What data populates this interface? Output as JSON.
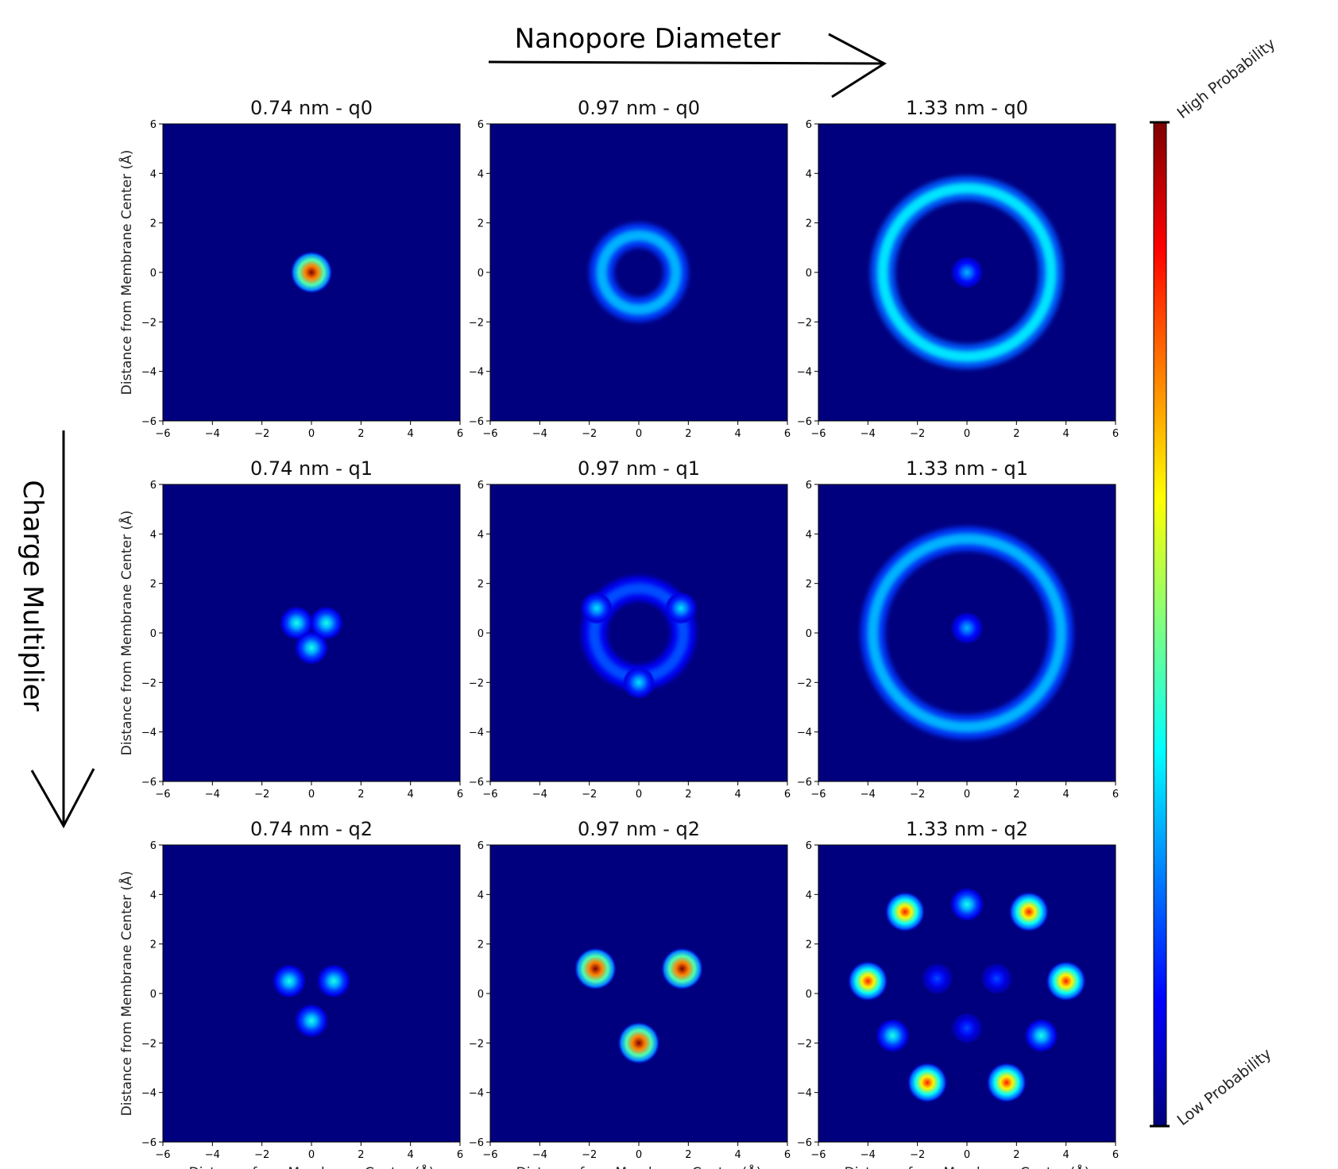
{
  "figure": {
    "top_label": "Nanopore Diameter",
    "left_label": "Charge Multiplier",
    "colorbar_high": "High Probability",
    "colorbar_low": "Low Probability",
    "colorbar_colors": [
      "#00007f",
      "#0000ff",
      "#007fff",
      "#00ffff",
      "#7fff7f",
      "#ffff00",
      "#ff7f00",
      "#ff0000",
      "#7f0000"
    ]
  },
  "chart_data": [
    {
      "type": "heatmap",
      "title": "0.74 nm - q0",
      "ylabel": "Distance from Membrane Center (Å)",
      "xlabel": "",
      "xlim": [
        -6,
        6
      ],
      "ylim": [
        -6,
        6
      ],
      "xticks": [
        -6,
        -4,
        -2,
        0,
        2,
        4,
        6
      ],
      "yticks": [
        -6,
        -4,
        -2,
        0,
        2,
        4,
        6
      ],
      "features": [
        {
          "x": 0,
          "y": 0,
          "peak": 1.0
        }
      ]
    },
    {
      "type": "heatmap",
      "title": "0.97 nm - q0",
      "ylabel": "",
      "xlabel": "",
      "xlim": [
        -6,
        6
      ],
      "ylim": [
        -6,
        6
      ],
      "xticks": [
        -6,
        -4,
        -2,
        0,
        2,
        4,
        6
      ],
      "yticks": [
        -6,
        -4,
        -2,
        0,
        2,
        4,
        6
      ],
      "features": [
        {
          "shape": "ring",
          "x": 0,
          "y": 0,
          "radius": 1.5,
          "peak": 0.3
        }
      ]
    },
    {
      "type": "heatmap",
      "title": "1.33 nm - q0",
      "ylabel": "",
      "xlabel": "",
      "xlim": [
        -6,
        6
      ],
      "ylim": [
        -6,
        6
      ],
      "xticks": [
        -6,
        -4,
        -2,
        0,
        2,
        4,
        6
      ],
      "yticks": [
        -6,
        -4,
        -2,
        0,
        2,
        4,
        6
      ],
      "features": [
        {
          "shape": "ring",
          "x": 0,
          "y": 0,
          "radius": 3.4,
          "peak": 0.35
        },
        {
          "x": 0,
          "y": 0,
          "peak": 0.3
        }
      ]
    },
    {
      "type": "heatmap",
      "title": "0.74 nm - q1",
      "ylabel": "Distance from Membrane Center (Å)",
      "xlabel": "",
      "xlim": [
        -6,
        6
      ],
      "ylim": [
        -6,
        6
      ],
      "xticks": [
        -6,
        -4,
        -2,
        0,
        2,
        4,
        6
      ],
      "yticks": [
        -6,
        -4,
        -2,
        0,
        2,
        4,
        6
      ],
      "features": [
        {
          "x": -0.6,
          "y": 0.4,
          "peak": 0.4
        },
        {
          "x": 0.6,
          "y": 0.4,
          "peak": 0.4
        },
        {
          "x": 0,
          "y": -0.6,
          "peak": 0.4
        }
      ]
    },
    {
      "type": "heatmap",
      "title": "0.97 nm - q1",
      "ylabel": "",
      "xlabel": "",
      "xlim": [
        -6,
        6
      ],
      "ylim": [
        -6,
        6
      ],
      "xticks": [
        -6,
        -4,
        -2,
        0,
        2,
        4,
        6
      ],
      "yticks": [
        -6,
        -4,
        -2,
        0,
        2,
        4,
        6
      ],
      "features": [
        {
          "shape": "ring",
          "x": 0,
          "y": 0,
          "radius": 1.8,
          "peak": 0.2
        },
        {
          "x": -1.7,
          "y": 1.0,
          "peak": 0.35
        },
        {
          "x": 1.7,
          "y": 1.0,
          "peak": 0.35
        },
        {
          "x": 0,
          "y": -2.0,
          "peak": 0.35
        }
      ]
    },
    {
      "type": "heatmap",
      "title": "1.33 nm - q1",
      "ylabel": "",
      "xlabel": "",
      "xlim": [
        -6,
        6
      ],
      "ylim": [
        -6,
        6
      ],
      "xticks": [
        -6,
        -4,
        -2,
        0,
        2,
        4,
        6
      ],
      "yticks": [
        -6,
        -4,
        -2,
        0,
        2,
        4,
        6
      ],
      "features": [
        {
          "shape": "ring",
          "x": 0,
          "y": 0,
          "radius": 3.8,
          "peak": 0.3
        },
        {
          "x": 0,
          "y": 0.2,
          "peak": 0.3
        }
      ]
    },
    {
      "type": "heatmap",
      "title": "0.74 nm - q2",
      "ylabel": "Distance from Membrane Center (Å)",
      "xlabel": "Distance from Membrane Center (Å)",
      "xlim": [
        -6,
        6
      ],
      "ylim": [
        -6,
        6
      ],
      "xticks": [
        -6,
        -4,
        -2,
        0,
        2,
        4,
        6
      ],
      "yticks": [
        -6,
        -4,
        -2,
        0,
        2,
        4,
        6
      ],
      "features": [
        {
          "x": -0.9,
          "y": 0.5,
          "peak": 0.4
        },
        {
          "x": 0.9,
          "y": 0.5,
          "peak": 0.4
        },
        {
          "x": 0,
          "y": -1.1,
          "peak": 0.4
        }
      ]
    },
    {
      "type": "heatmap",
      "title": "0.97 nm - q2",
      "ylabel": "",
      "xlabel": "Distance from Membrane Center (Å)",
      "xlim": [
        -6,
        6
      ],
      "ylim": [
        -6,
        6
      ],
      "xticks": [
        -6,
        -4,
        -2,
        0,
        2,
        4,
        6
      ],
      "yticks": [
        -6,
        -4,
        -2,
        0,
        2,
        4,
        6
      ],
      "features": [
        {
          "x": -1.75,
          "y": 1.0,
          "peak": 1.0
        },
        {
          "x": 1.75,
          "y": 1.0,
          "peak": 1.0
        },
        {
          "x": 0,
          "y": -2.0,
          "peak": 1.0
        }
      ]
    },
    {
      "type": "heatmap",
      "title": "1.33 nm - q2",
      "ylabel": "",
      "xlabel": "Distance from Membrane Center (Å)",
      "xlim": [
        -6,
        6
      ],
      "ylim": [
        -6,
        6
      ],
      "xticks": [
        -6,
        -4,
        -2,
        0,
        2,
        4,
        6
      ],
      "yticks": [
        -6,
        -4,
        -2,
        0,
        2,
        4,
        6
      ],
      "features": [
        {
          "x": -2.5,
          "y": 3.3,
          "peak": 0.85
        },
        {
          "x": 2.5,
          "y": 3.3,
          "peak": 0.85
        },
        {
          "x": -4.0,
          "y": 0.5,
          "peak": 0.85
        },
        {
          "x": 4.0,
          "y": 0.5,
          "peak": 0.85
        },
        {
          "x": -1.6,
          "y": -3.6,
          "peak": 0.85
        },
        {
          "x": 1.6,
          "y": -3.6,
          "peak": 0.85
        },
        {
          "x": 0,
          "y": 3.6,
          "peak": 0.4
        },
        {
          "x": -3.0,
          "y": -1.7,
          "peak": 0.4
        },
        {
          "x": 3.0,
          "y": -1.7,
          "peak": 0.4
        },
        {
          "x": 0,
          "y": -1.4,
          "peak": 0.2
        },
        {
          "x": -1.2,
          "y": 0.6,
          "peak": 0.2
        },
        {
          "x": 1.2,
          "y": 0.6,
          "peak": 0.2
        }
      ]
    }
  ]
}
